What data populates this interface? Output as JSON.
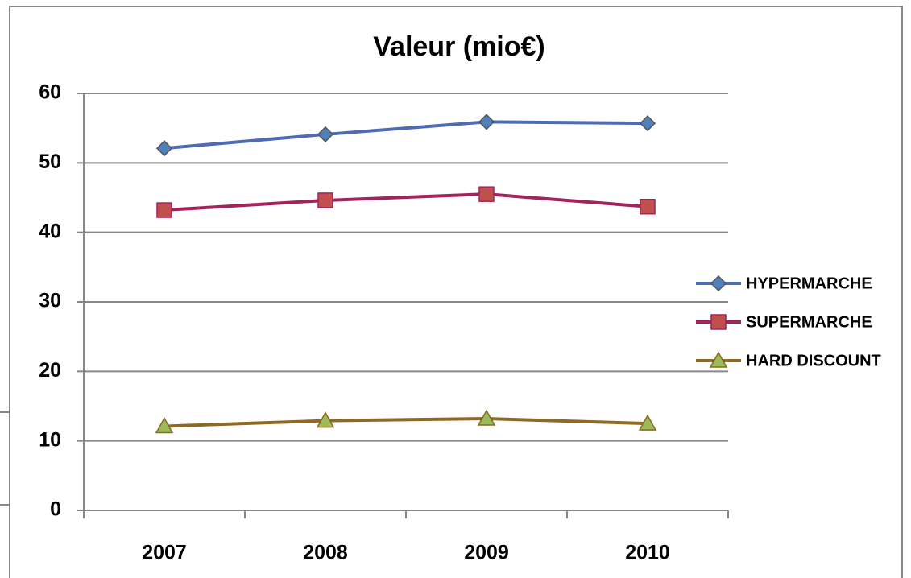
{
  "chart_data": {
    "type": "line",
    "title": "Valeur (mio€)",
    "categories": [
      "2007",
      "2008",
      "2009",
      "2010"
    ],
    "series": [
      {
        "name": "HYPERMARCHE",
        "color": "#4f6bb5",
        "marker": "diamond",
        "values": [
          52.1,
          54.1,
          55.9,
          55.7
        ]
      },
      {
        "name": "SUPERMARCHE",
        "color": "#a3235c",
        "marker": "square",
        "values": [
          43.2,
          44.6,
          45.5,
          43.7
        ]
      },
      {
        "name": "HARD DISCOUNT",
        "color": "#8c6a22",
        "marker": "triangle",
        "values": [
          12.1,
          12.9,
          13.2,
          12.5
        ]
      }
    ],
    "ylim": [
      0,
      60
    ],
    "yticks": [
      0,
      10,
      20,
      30,
      40,
      50,
      60
    ],
    "grid": true,
    "legend": "right"
  }
}
